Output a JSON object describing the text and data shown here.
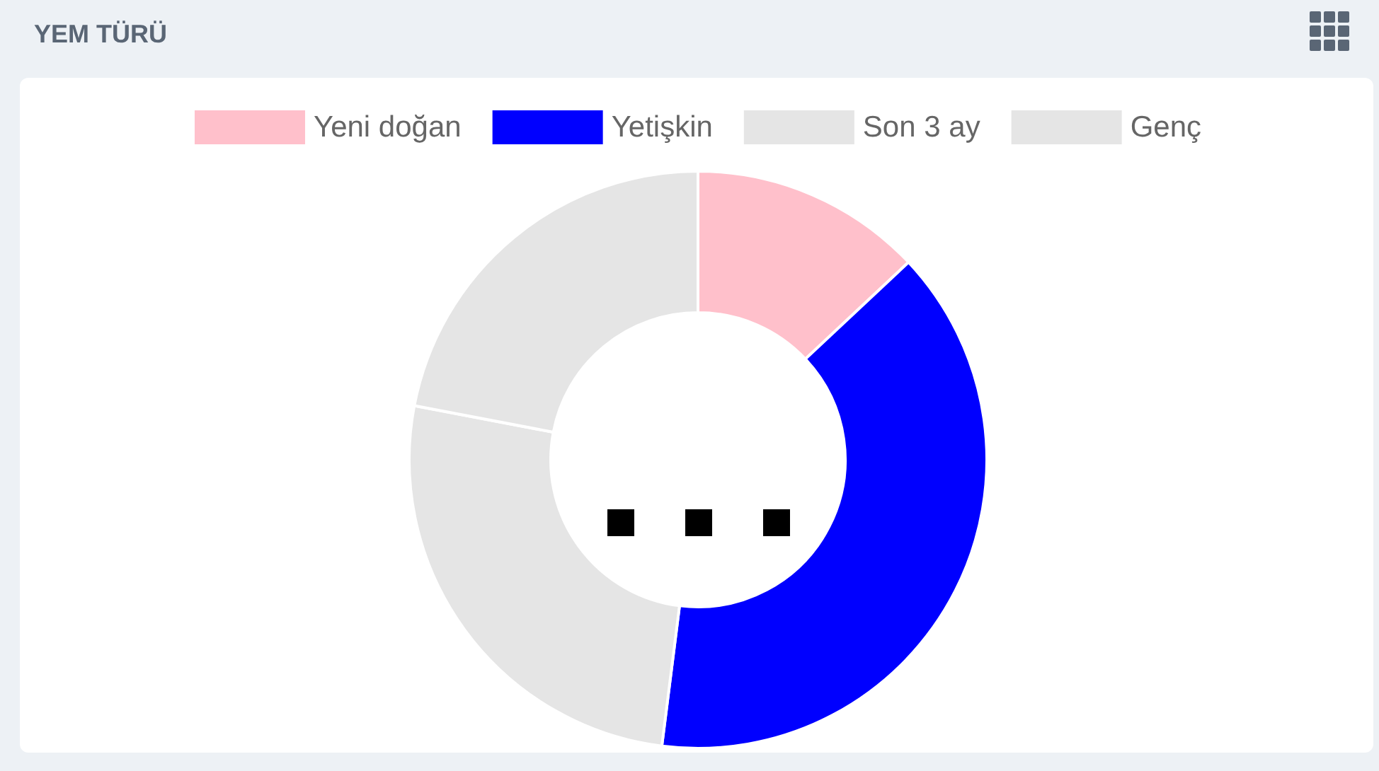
{
  "chart_data": {
    "type": "donut",
    "title": "YEM TÜRÜ",
    "categories": [
      "Yeni doğan",
      "Yetişkin",
      "Son 3 ay",
      "Genç"
    ],
    "values": [
      13,
      39,
      26,
      22
    ],
    "colors": [
      "#ffc0cb",
      "#0000ff",
      "#e5e5e5",
      "#e5e5e5"
    ],
    "legend": "top"
  }
}
